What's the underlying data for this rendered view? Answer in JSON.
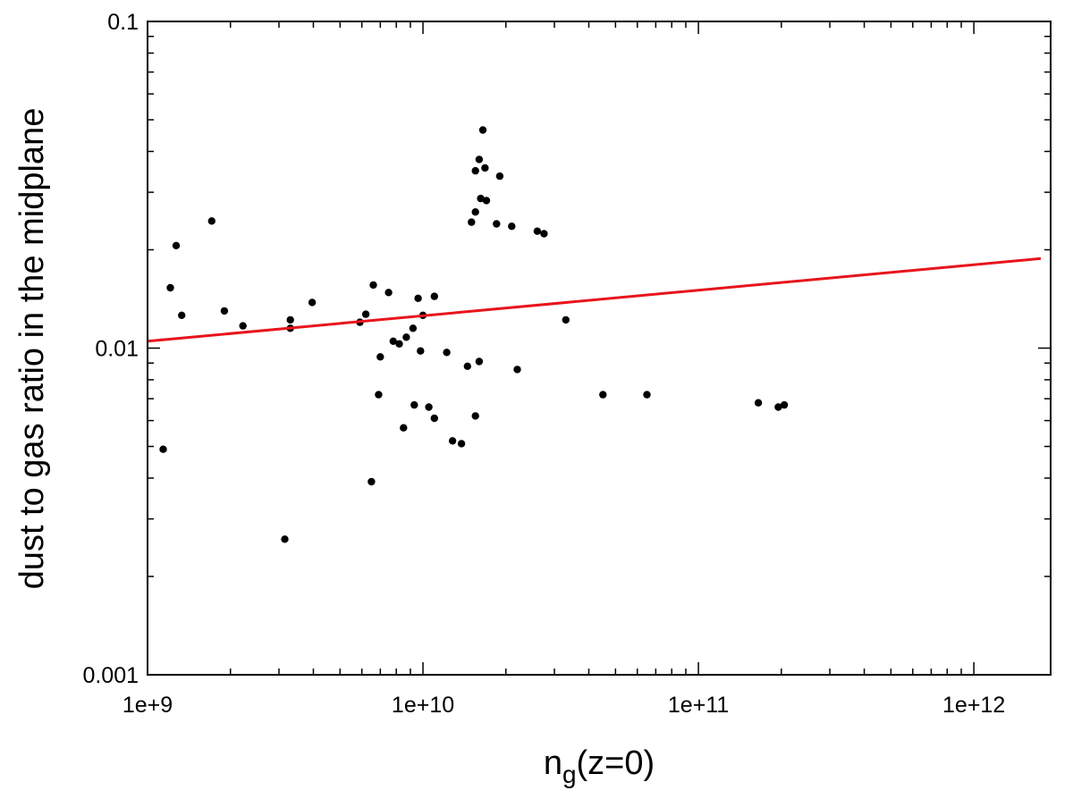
{
  "chart_data": {
    "type": "scatter",
    "title": "",
    "xlabel": "n",
    "xlabel_subscript": "g",
    "xlabel_suffix": "(z=0)",
    "ylabel": "dust to gas ratio in the midplane",
    "xscale": "log",
    "yscale": "log",
    "xlim": [
      1000000000.0,
      1900000000000.0
    ],
    "ylim": [
      0.001,
      0.1
    ],
    "grid": false,
    "legend": "none",
    "x_ticks": [
      1000000000.0,
      10000000000.0,
      100000000000.0,
      1000000000000.0
    ],
    "x_tick_labels": [
      "1e+9",
      "1e+10",
      "1e+11",
      "1e+12"
    ],
    "y_ticks": [
      0.001,
      0.01,
      0.1
    ],
    "y_tick_labels": [
      "0.001",
      "0.01",
      "0.1"
    ],
    "colors": {
      "points": "#000000",
      "fit": "#e8141c"
    },
    "fit_line": {
      "x": [
        1000000000.0,
        1750000000000.0
      ],
      "y": [
        0.0105,
        0.0188
      ]
    },
    "series": [
      {
        "points": [
          [
            1140000000.0,
            0.0049
          ],
          [
            1210000000.0,
            0.0153
          ],
          [
            1270000000.0,
            0.0206
          ],
          [
            1330000000.0,
            0.0126
          ],
          [
            1710000000.0,
            0.0245
          ],
          [
            1900000000.0,
            0.013
          ],
          [
            2220000000.0,
            0.0117
          ],
          [
            3150000000.0,
            0.0026
          ],
          [
            3300000000.0,
            0.0122
          ],
          [
            3300000000.0,
            0.0115
          ],
          [
            3960000000.0,
            0.0138
          ],
          [
            5900000000.0,
            0.012
          ],
          [
            6200000000.0,
            0.0127
          ],
          [
            6500000000.0,
            0.0039
          ],
          [
            6600000000.0,
            0.0156
          ],
          [
            6900000000.0,
            0.0072
          ],
          [
            7000000000.0,
            0.0094
          ],
          [
            7500000000.0,
            0.0148
          ],
          [
            7800000000.0,
            0.0105
          ],
          [
            8200000000.0,
            0.0103
          ],
          [
            8500000000.0,
            0.0057
          ],
          [
            8700000000.0,
            0.0108
          ],
          [
            9200000000.0,
            0.0115
          ],
          [
            9300000000.0,
            0.0067
          ],
          [
            9600000000.0,
            0.0142
          ],
          [
            9800000000.0,
            0.0098
          ],
          [
            10000000000.0,
            0.0126
          ],
          [
            10500000000.0,
            0.0066
          ],
          [
            11000000000.0,
            0.0061
          ],
          [
            11000000000.0,
            0.0144
          ],
          [
            12200000000.0,
            0.0097
          ],
          [
            12800000000.0,
            0.0052
          ],
          [
            13800000000.0,
            0.0051
          ],
          [
            14500000000.0,
            0.0088
          ],
          [
            15500000000.0,
            0.0062
          ],
          [
            16000000000.0,
            0.0091
          ],
          [
            15500000000.0,
            0.0349
          ],
          [
            16000000000.0,
            0.0378
          ],
          [
            16500000000.0,
            0.0465
          ],
          [
            16800000000.0,
            0.0356
          ],
          [
            15000000000.0,
            0.0243
          ],
          [
            15500000000.0,
            0.0261
          ],
          [
            16200000000.0,
            0.0287
          ],
          [
            17000000000.0,
            0.0283
          ],
          [
            19000000000.0,
            0.0336
          ],
          [
            18500000000.0,
            0.024
          ],
          [
            21000000000.0,
            0.0236
          ],
          [
            22000000000.0,
            0.0086
          ],
          [
            26000000000.0,
            0.0228
          ],
          [
            27500000000.0,
            0.0224
          ],
          [
            33000000000.0,
            0.0122
          ],
          [
            45000000000.0,
            0.0072
          ],
          [
            165000000000.0,
            0.0068
          ],
          [
            195000000000.0,
            0.0066
          ],
          [
            205000000000.0,
            0.0067
          ],
          [
            65000000000.0,
            0.0072
          ]
        ]
      }
    ]
  }
}
